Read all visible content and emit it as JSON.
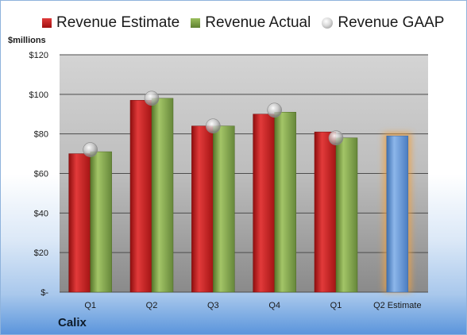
{
  "chart_data": {
    "type": "bar",
    "categories": [
      "Q1",
      "Q2",
      "Q3",
      "Q4",
      "Q1",
      "Q2 Estimate"
    ],
    "series": [
      {
        "name": "Revenue Estimate",
        "values": [
          70,
          97,
          84,
          90,
          81,
          null
        ],
        "color": "#cc1f1f"
      },
      {
        "name": "Revenue Actual",
        "values": [
          71,
          98,
          84,
          91,
          78,
          null
        ],
        "color": "#7ea048"
      },
      {
        "name": "Revenue GAAP",
        "values": [
          72,
          98,
          84,
          92,
          78,
          null
        ],
        "color": "#bfbfbf"
      }
    ],
    "projected": {
      "category": "Q2 Estimate",
      "value": 79,
      "color": "#5b8fd0",
      "glow": "#f0a040"
    },
    "ylabel": "$millions",
    "ylim": [
      0,
      120
    ],
    "yticks": [
      0,
      20,
      40,
      60,
      80,
      100,
      120
    ],
    "ytick_labels": [
      "$-",
      "$20",
      "$40",
      "$60",
      "$80",
      "$100",
      "$120"
    ],
    "grid": true,
    "legend_position": "top"
  },
  "legend": {
    "estimate": "Revenue Estimate",
    "actual": "Revenue Actual",
    "gaap": "Revenue GAAP"
  },
  "company": "Calix"
}
